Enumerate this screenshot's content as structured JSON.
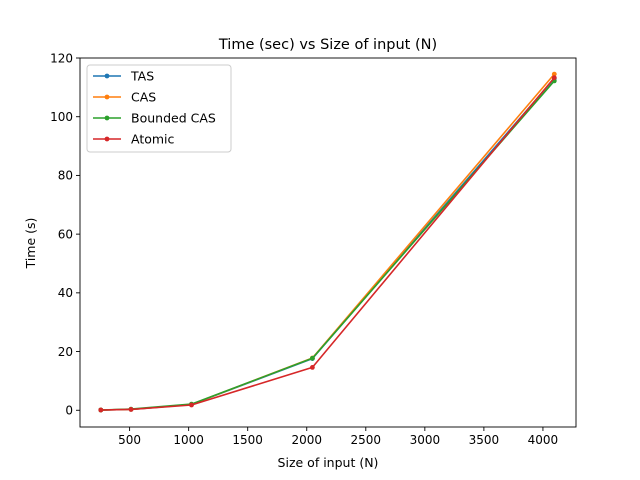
{
  "chart_data": {
    "type": "line",
    "title": "Time (sec) vs Size of input (N)",
    "xlabel": "Size of input (N)",
    "ylabel": "Time (s)",
    "xlim": [
      80,
      4280
    ],
    "ylim": [
      -5.7,
      120
    ],
    "xticks": [
      500,
      1000,
      1500,
      2000,
      2500,
      3000,
      3500,
      4000
    ],
    "yticks": [
      0,
      20,
      40,
      60,
      80,
      100,
      120
    ],
    "grid": false,
    "legend_position": "top-left",
    "x": [
      256,
      512,
      1024,
      2048,
      4096
    ],
    "series": [
      {
        "name": "TAS",
        "color": "#1f77b4",
        "values": [
          0.1,
          0.3,
          2.0,
          17.6,
          113.0
        ]
      },
      {
        "name": "CAS",
        "color": "#ff7f0e",
        "values": [
          0.1,
          0.3,
          2.0,
          17.8,
          114.5
        ]
      },
      {
        "name": "Bounded CAS",
        "color": "#2ca02c",
        "values": [
          0.1,
          0.4,
          2.1,
          17.7,
          112.2
        ]
      },
      {
        "name": "Atomic",
        "color": "#d62728",
        "values": [
          0.1,
          0.3,
          1.8,
          14.6,
          113.3
        ]
      }
    ]
  }
}
